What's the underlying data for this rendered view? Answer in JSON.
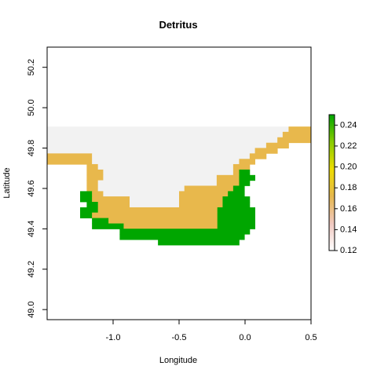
{
  "chart_data": {
    "type": "heatmap",
    "title": "Detritus",
    "xlabel": "Longitude",
    "ylabel": "Latitude",
    "xlim": [
      -1.5,
      0.5
    ],
    "ylim": [
      48.95,
      50.3
    ],
    "x_ticks": [
      -1.0,
      -0.5,
      0.0,
      0.5
    ],
    "x_tick_labels": [
      "-1.0",
      "-0.5",
      "0.0",
      "0.5"
    ],
    "y_ticks": [
      49.0,
      49.2,
      49.4,
      49.6,
      49.8,
      50.0,
      50.2
    ],
    "y_tick_labels": [
      "49.0",
      "49.2",
      "49.4",
      "49.6",
      "49.8",
      "50.0",
      "50.2"
    ],
    "grid": false,
    "legend": "right",
    "colorbar": {
      "range": [
        0.12,
        0.25
      ],
      "ticks": [
        0.12,
        0.14,
        0.16,
        0.18,
        0.2,
        0.22,
        0.24
      ],
      "tick_labels": [
        "0.12",
        "0.14",
        "0.16",
        "0.18",
        "0.20",
        "0.22",
        "0.24"
      ],
      "colors": [
        "#ffffff",
        "#f0c8c0",
        "#e6b84e",
        "#eedd00",
        "#88cc00",
        "#00a600"
      ]
    },
    "value_colors": {
      "0.125": "#f2f2f2",
      "0.165": "#e8b84c",
      "0.245": "#00a600"
    },
    "cells": [
      {
        "lat": 49.893,
        "lon_start": -1.5,
        "lon_end": 0.33,
        "value": 0.125
      },
      {
        "lat": 49.893,
        "lon_start": 0.33,
        "lon_end": 0.5,
        "value": 0.165
      },
      {
        "lat": 49.867,
        "lon_start": -1.5,
        "lon_end": 0.285,
        "value": 0.125
      },
      {
        "lat": 49.867,
        "lon_start": 0.285,
        "lon_end": 0.5,
        "value": 0.165
      },
      {
        "lat": 49.84,
        "lon_start": -1.5,
        "lon_end": 0.245,
        "value": 0.125
      },
      {
        "lat": 49.84,
        "lon_start": 0.245,
        "lon_end": 0.5,
        "value": 0.165
      },
      {
        "lat": 49.813,
        "lon_start": -1.5,
        "lon_end": 0.16,
        "value": 0.125
      },
      {
        "lat": 49.813,
        "lon_start": 0.16,
        "lon_end": 0.33,
        "value": 0.165
      },
      {
        "lat": 49.787,
        "lon_start": -1.5,
        "lon_end": 0.075,
        "value": 0.125
      },
      {
        "lat": 49.787,
        "lon_start": 0.075,
        "lon_end": 0.245,
        "value": 0.165
      },
      {
        "lat": 49.76,
        "lon_start": -1.5,
        "lon_end": -1.16,
        "value": 0.165
      },
      {
        "lat": 49.76,
        "lon_start": -1.16,
        "lon_end": 0.035,
        "value": 0.125
      },
      {
        "lat": 49.76,
        "lon_start": 0.035,
        "lon_end": 0.16,
        "value": 0.165
      },
      {
        "lat": 49.733,
        "lon_start": -1.5,
        "lon_end": -1.16,
        "value": 0.165
      },
      {
        "lat": 49.733,
        "lon_start": -1.16,
        "lon_end": -0.045,
        "value": 0.125
      },
      {
        "lat": 49.733,
        "lon_start": -0.045,
        "lon_end": 0.075,
        "value": 0.165
      },
      {
        "lat": 49.707,
        "lon_start": -1.2,
        "lon_end": -1.115,
        "value": 0.165
      },
      {
        "lat": 49.707,
        "lon_start": -1.115,
        "lon_end": -0.09,
        "value": 0.125
      },
      {
        "lat": 49.707,
        "lon_start": -0.09,
        "lon_end": 0.035,
        "value": 0.165
      },
      {
        "lat": 49.68,
        "lon_start": -1.2,
        "lon_end": -1.075,
        "value": 0.165
      },
      {
        "lat": 49.68,
        "lon_start": -1.075,
        "lon_end": -0.09,
        "value": 0.125
      },
      {
        "lat": 49.68,
        "lon_start": -0.09,
        "lon_end": -0.045,
        "value": 0.165
      },
      {
        "lat": 49.68,
        "lon_start": -0.045,
        "lon_end": 0.035,
        "value": 0.245
      },
      {
        "lat": 49.653,
        "lon_start": -1.2,
        "lon_end": -1.075,
        "value": 0.165
      },
      {
        "lat": 49.653,
        "lon_start": -1.075,
        "lon_end": -0.215,
        "value": 0.125
      },
      {
        "lat": 49.653,
        "lon_start": -0.215,
        "lon_end": -0.045,
        "value": 0.165
      },
      {
        "lat": 49.653,
        "lon_start": -0.045,
        "lon_end": 0.075,
        "value": 0.245
      },
      {
        "lat": 49.627,
        "lon_start": -1.2,
        "lon_end": -1.115,
        "value": 0.165
      },
      {
        "lat": 49.627,
        "lon_start": -1.115,
        "lon_end": -0.215,
        "value": 0.125
      },
      {
        "lat": 49.627,
        "lon_start": -0.215,
        "lon_end": -0.045,
        "value": 0.165
      },
      {
        "lat": 49.627,
        "lon_start": -0.045,
        "lon_end": 0.035,
        "value": 0.245
      },
      {
        "lat": 49.6,
        "lon_start": -1.2,
        "lon_end": -1.115,
        "value": 0.165
      },
      {
        "lat": 49.6,
        "lon_start": -1.115,
        "lon_end": -0.46,
        "value": 0.125
      },
      {
        "lat": 49.6,
        "lon_start": -0.46,
        "lon_end": -0.09,
        "value": 0.165
      },
      {
        "lat": 49.6,
        "lon_start": -0.09,
        "lon_end": -0.005,
        "value": 0.245
      },
      {
        "lat": 49.573,
        "lon_start": -1.25,
        "lon_end": -1.16,
        "value": 0.245
      },
      {
        "lat": 49.573,
        "lon_start": -1.16,
        "lon_end": -1.075,
        "value": 0.165
      },
      {
        "lat": 49.573,
        "lon_start": -1.075,
        "lon_end": -0.5,
        "value": 0.125
      },
      {
        "lat": 49.573,
        "lon_start": -0.5,
        "lon_end": -0.13,
        "value": 0.165
      },
      {
        "lat": 49.573,
        "lon_start": -0.13,
        "lon_end": -0.005,
        "value": 0.245
      },
      {
        "lat": 49.547,
        "lon_start": -1.25,
        "lon_end": -1.16,
        "value": 0.245
      },
      {
        "lat": 49.547,
        "lon_start": -1.16,
        "lon_end": -0.875,
        "value": 0.165
      },
      {
        "lat": 49.547,
        "lon_start": -0.875,
        "lon_end": -0.5,
        "value": 0.125
      },
      {
        "lat": 49.547,
        "lon_start": -0.5,
        "lon_end": -0.17,
        "value": 0.165
      },
      {
        "lat": 49.547,
        "lon_start": -0.17,
        "lon_end": 0.035,
        "value": 0.245
      },
      {
        "lat": 49.52,
        "lon_start": -1.2,
        "lon_end": -1.115,
        "value": 0.245
      },
      {
        "lat": 49.52,
        "lon_start": -1.115,
        "lon_end": -0.875,
        "value": 0.165
      },
      {
        "lat": 49.52,
        "lon_start": -0.875,
        "lon_end": -0.5,
        "value": 0.125
      },
      {
        "lat": 49.52,
        "lon_start": -0.5,
        "lon_end": -0.17,
        "value": 0.165
      },
      {
        "lat": 49.52,
        "lon_start": -0.17,
        "lon_end": 0.035,
        "value": 0.245
      },
      {
        "lat": 49.493,
        "lon_start": -1.25,
        "lon_end": -1.115,
        "value": 0.245
      },
      {
        "lat": 49.493,
        "lon_start": -1.115,
        "lon_end": -0.21,
        "value": 0.165
      },
      {
        "lat": 49.493,
        "lon_start": -0.21,
        "lon_end": 0.075,
        "value": 0.245
      },
      {
        "lat": 49.467,
        "lon_start": -1.25,
        "lon_end": -1.16,
        "value": 0.245
      },
      {
        "lat": 49.467,
        "lon_start": -1.16,
        "lon_end": -1.075,
        "value": 0.165
      },
      {
        "lat": 49.467,
        "lon_start": -1.075,
        "lon_end": -0.21,
        "value": 0.165
      },
      {
        "lat": 49.467,
        "lon_start": -0.21,
        "lon_end": 0.075,
        "value": 0.245
      },
      {
        "lat": 49.44,
        "lon_start": -1.16,
        "lon_end": -1.035,
        "value": 0.245
      },
      {
        "lat": 49.44,
        "lon_start": -1.035,
        "lon_end": -0.21,
        "value": 0.165
      },
      {
        "lat": 49.44,
        "lon_start": -0.21,
        "lon_end": 0.075,
        "value": 0.245
      },
      {
        "lat": 49.413,
        "lon_start": -1.16,
        "lon_end": -0.92,
        "value": 0.245
      },
      {
        "lat": 49.413,
        "lon_start": -0.92,
        "lon_end": -0.21,
        "value": 0.165
      },
      {
        "lat": 49.413,
        "lon_start": -0.21,
        "lon_end": 0.075,
        "value": 0.245
      },
      {
        "lat": 49.387,
        "lon_start": -0.95,
        "lon_end": 0.035,
        "value": 0.245
      },
      {
        "lat": 49.36,
        "lon_start": -0.95,
        "lon_end": -0.005,
        "value": 0.245
      },
      {
        "lat": 49.333,
        "lon_start": -0.66,
        "lon_end": -0.045,
        "value": 0.245
      }
    ]
  }
}
